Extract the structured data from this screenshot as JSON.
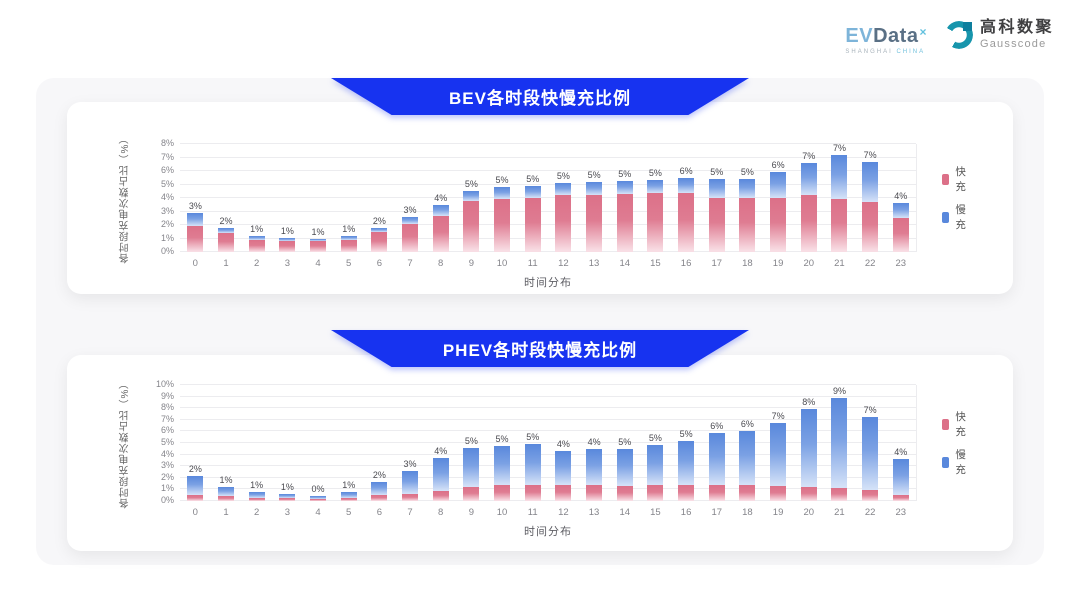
{
  "header": {
    "evdata": {
      "ev": "EV",
      "data": "Data",
      "sup": "×",
      "sub1": "SHANGHAI",
      "sub2": "CHINA"
    },
    "gausscode": {
      "cn": "高科数聚",
      "en": "Gausscode"
    }
  },
  "colors": {
    "banner_blue": "#1733f0",
    "fast_pink": "#dc7088",
    "fast_pink_mid": "#df7c92",
    "fast_pink_fade": "#f8dde4",
    "slow_blue": "#5988dc",
    "slow_blue_mid": "#7ba1e4",
    "slow_blue_fade": "#d6e3f8",
    "grid": "#ececef"
  },
  "chart_data": [
    {
      "type": "bar",
      "stacked": true,
      "title": "BEV各时段快慢充比例",
      "xlabel": "时间分布",
      "ylabel": "各时段充电次数占比（%）",
      "ylim": [
        0,
        8
      ],
      "yticks": [
        "0%",
        "1%",
        "2%",
        "3%",
        "4%",
        "5%",
        "6%",
        "7%",
        "8%"
      ],
      "grid": true,
      "legend_position": "right",
      "categories": [
        "0",
        "1",
        "2",
        "3",
        "4",
        "5",
        "6",
        "7",
        "8",
        "9",
        "10",
        "11",
        "12",
        "13",
        "14",
        "15",
        "16",
        "17",
        "18",
        "19",
        "20",
        "21",
        "22",
        "23"
      ],
      "series": [
        {
          "name": "快充",
          "key": "fast",
          "values": [
            1.9,
            1.4,
            0.9,
            0.8,
            0.8,
            0.9,
            1.5,
            2.1,
            2.7,
            3.8,
            3.9,
            4.0,
            4.2,
            4.2,
            4.3,
            4.4,
            4.4,
            4.0,
            4.0,
            4.0,
            4.2,
            3.9,
            3.7,
            2.5
          ]
        },
        {
          "name": "慢充",
          "key": "slow",
          "values": [
            1.0,
            0.4,
            0.3,
            0.25,
            0.15,
            0.25,
            0.3,
            0.5,
            0.8,
            0.7,
            0.9,
            0.9,
            0.9,
            1.0,
            1.0,
            0.9,
            1.1,
            1.4,
            1.4,
            1.9,
            2.4,
            3.3,
            3.0,
            1.1
          ]
        }
      ],
      "total_labels": [
        "3%",
        "2%",
        "1%",
        "1%",
        "1%",
        "1%",
        "2%",
        "3%",
        "4%",
        "5%",
        "5%",
        "5%",
        "5%",
        "5%",
        "5%",
        "5%",
        "6%",
        "5%",
        "5%",
        "6%",
        "7%",
        "7%",
        "7%",
        "4%"
      ]
    },
    {
      "type": "bar",
      "stacked": true,
      "title": "PHEV各时段快慢充比例",
      "xlabel": "时间分布",
      "ylabel": "各时段充电次数占比（%）",
      "ylim": [
        0,
        10
      ],
      "yticks": [
        "0%",
        "1%",
        "2%",
        "3%",
        "4%",
        "5%",
        "6%",
        "7%",
        "8%",
        "9%",
        "10%"
      ],
      "grid": true,
      "legend_position": "right",
      "categories": [
        "0",
        "1",
        "2",
        "3",
        "4",
        "5",
        "6",
        "7",
        "8",
        "9",
        "10",
        "11",
        "12",
        "13",
        "14",
        "15",
        "16",
        "17",
        "18",
        "19",
        "20",
        "21",
        "22",
        "23"
      ],
      "series": [
        {
          "name": "快充",
          "key": "fast",
          "values": [
            0.5,
            0.4,
            0.3,
            0.28,
            0.2,
            0.3,
            0.5,
            0.65,
            0.85,
            1.25,
            1.35,
            1.4,
            1.35,
            1.35,
            1.3,
            1.4,
            1.35,
            1.35,
            1.35,
            1.3,
            1.25,
            1.15,
            0.95,
            0.5
          ]
        },
        {
          "name": "慢充",
          "key": "slow",
          "values": [
            1.65,
            0.8,
            0.45,
            0.3,
            0.2,
            0.5,
            1.1,
            1.95,
            2.9,
            3.3,
            3.4,
            3.5,
            3.0,
            3.1,
            3.2,
            3.4,
            3.85,
            4.55,
            4.7,
            5.4,
            6.65,
            7.75,
            6.3,
            3.1
          ]
        }
      ],
      "total_labels": [
        "2%",
        "1%",
        "1%",
        "1%",
        "0%",
        "1%",
        "2%",
        "3%",
        "4%",
        "5%",
        "5%",
        "5%",
        "4%",
        "4%",
        "5%",
        "5%",
        "5%",
        "6%",
        "6%",
        "7%",
        "8%",
        "9%",
        "7%",
        "4%"
      ]
    }
  ]
}
